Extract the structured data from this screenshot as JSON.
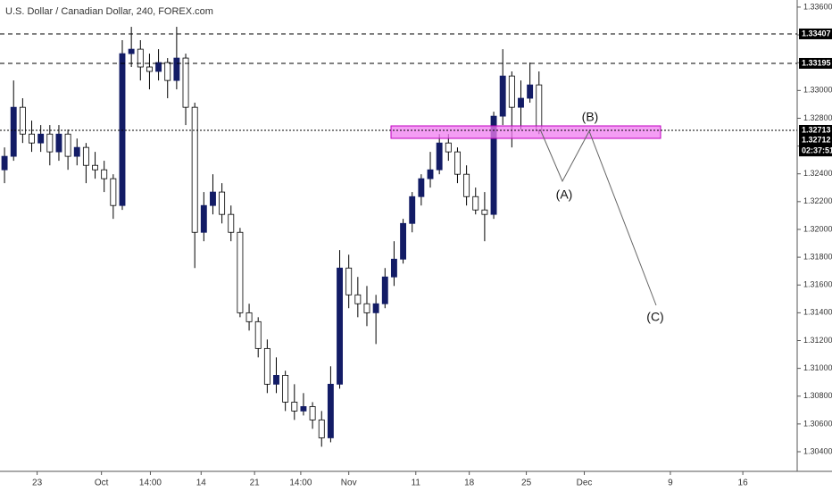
{
  "chart_data": {
    "type": "candlestick",
    "title": "U.S. Dollar / Canadian Dollar, 240, FOREX.com",
    "open": [
      1.32429,
      1.32526,
      1.32879,
      1.32686,
      1.32622,
      1.32686,
      1.32558,
      1.32686,
      1.32526,
      1.3259,
      1.32461,
      1.32429,
      1.32365,
      1.32172,
      1.33265,
      1.33297,
      1.33169,
      1.33137,
      1.33201,
      1.33072,
      1.33233,
      1.32879,
      1.31979,
      1.32172,
      1.32269,
      1.32108,
      1.31979,
      1.314,
      1.31336,
      1.31143,
      1.30886,
      1.3095,
      1.30757,
      1.30693,
      1.30725,
      1.30629,
      1.305,
      1.30886,
      1.31722,
      1.31529,
      1.31465,
      1.314,
      1.31465,
      1.31658,
      1.31786,
      1.32043,
      1.32236,
      1.32365,
      1.32429,
      1.32622,
      1.32558,
      1.32397,
      1.32236,
      1.3214,
      1.32108,
      1.32815,
      1.33104,
      1.32879,
      1.32944,
      1.3304
    ],
    "high": [
      1.3259,
      1.33072,
      1.32944,
      1.32783,
      1.32751,
      1.32751,
      1.32751,
      1.32719,
      1.32654,
      1.32622,
      1.32558,
      1.32494,
      1.32397,
      1.33362,
      1.33458,
      1.33362,
      1.33265,
      1.33297,
      1.33233,
      1.33458,
      1.33265,
      1.32912,
      1.32269,
      1.32397,
      1.32333,
      1.32172,
      1.32011,
      1.31465,
      1.31368,
      1.31208,
      1.31079,
      1.30983,
      1.30886,
      1.30822,
      1.30757,
      1.30693,
      1.31015,
      1.31851,
      1.31818,
      1.31658,
      1.31593,
      1.31529,
      1.31722,
      1.31915,
      1.32076,
      1.32269,
      1.32397,
      1.32558,
      1.32686,
      1.32686,
      1.3259,
      1.32461,
      1.32301,
      1.32269,
      1.32847,
      1.33297,
      1.33137,
      1.33072,
      1.33201,
      1.33137
    ],
    "low": [
      1.32333,
      1.32494,
      1.32622,
      1.32558,
      1.32558,
      1.32461,
      1.32494,
      1.32429,
      1.32461,
      1.32333,
      1.32365,
      1.32269,
      1.32076,
      1.3214,
      1.33169,
      1.33072,
      1.33008,
      1.33072,
      1.32944,
      1.33008,
      1.32751,
      1.31722,
      1.31915,
      1.32108,
      1.32043,
      1.31915,
      1.31368,
      1.31272,
      1.31079,
      1.30822,
      1.30822,
      1.30693,
      1.30629,
      1.30661,
      1.30565,
      1.30436,
      1.30468,
      1.30854,
      1.31433,
      1.31368,
      1.31304,
      1.31175,
      1.31433,
      1.31593,
      1.31754,
      1.31979,
      1.32172,
      1.32301,
      1.32397,
      1.32494,
      1.32333,
      1.32172,
      1.32108,
      1.31915,
      1.32076,
      1.32751,
      1.3259,
      1.32719,
      1.32912,
      1.32686
    ],
    "close": [
      1.32526,
      1.32879,
      1.32686,
      1.32622,
      1.32686,
      1.32558,
      1.32686,
      1.32526,
      1.3259,
      1.32461,
      1.32429,
      1.32365,
      1.32172,
      1.33265,
      1.33297,
      1.33169,
      1.33137,
      1.33201,
      1.33072,
      1.33233,
      1.32879,
      1.31979,
      1.32172,
      1.32269,
      1.32108,
      1.31979,
      1.314,
      1.31336,
      1.31143,
      1.30886,
      1.3095,
      1.30757,
      1.30693,
      1.30725,
      1.30629,
      1.305,
      1.30886,
      1.31722,
      1.31529,
      1.31465,
      1.314,
      1.31465,
      1.31658,
      1.31786,
      1.32043,
      1.32236,
      1.32365,
      1.32429,
      1.32622,
      1.32558,
      1.32397,
      1.32236,
      1.3214,
      1.32108,
      1.32815,
      1.33104,
      1.32879,
      1.32944,
      1.3304,
      1.32712
    ],
    "up_color": "#131c66",
    "down_color": "#ffffff",
    "xlim": [
      0,
      88
    ],
    "xticks": [
      {
        "value": 4.1,
        "label": "23"
      },
      {
        "value": 11.2,
        "label": "Oct"
      },
      {
        "value": 16.6,
        "label": "14:00"
      },
      {
        "value": 22.2,
        "label": "14"
      },
      {
        "value": 28.1,
        "label": "21"
      },
      {
        "value": 33.2,
        "label": "14:00"
      },
      {
        "value": 38.5,
        "label": "Nov"
      },
      {
        "value": 45.9,
        "label": "11"
      },
      {
        "value": 51.8,
        "label": "18"
      },
      {
        "value": 58.1,
        "label": "25"
      },
      {
        "value": 64.5,
        "label": "Dec"
      },
      {
        "value": 74,
        "label": "9"
      },
      {
        "value": 82,
        "label": "16"
      }
    ],
    "ylim": [
      1.30278,
      1.33651
    ],
    "yticks": [
      {
        "value": 1.304,
        "label": "1.30400"
      },
      {
        "value": 1.306,
        "label": "1.30600"
      },
      {
        "value": 1.308,
        "label": "1.30800"
      },
      {
        "value": 1.31,
        "label": "1.31000"
      },
      {
        "value": 1.312,
        "label": "1.31200"
      },
      {
        "value": 1.314,
        "label": "1.31400"
      },
      {
        "value": 1.316,
        "label": "1.31600"
      },
      {
        "value": 1.318,
        "label": "1.31800"
      },
      {
        "value": 1.32,
        "label": "1.32000"
      },
      {
        "value": 1.322,
        "label": "1.32200"
      },
      {
        "value": 1.324,
        "label": "1.32400"
      },
      {
        "value": 1.326,
        "label": "1.32600"
      },
      {
        "value": 1.328,
        "label": "1.32800"
      },
      {
        "value": 1.33,
        "label": "1.33000"
      },
      {
        "value": 1.332,
        "label": "1.33200"
      },
      {
        "value": 1.334,
        "label": "1.33400"
      },
      {
        "value": 1.336,
        "label": "1.33600"
      }
    ],
    "hlines": [
      1.33407,
      1.33195,
      1.32713
    ],
    "last_price": 1.32712,
    "countdown": "02:37:51",
    "annotations": [
      "(A)",
      "(B)",
      "(C)"
    ]
  }
}
